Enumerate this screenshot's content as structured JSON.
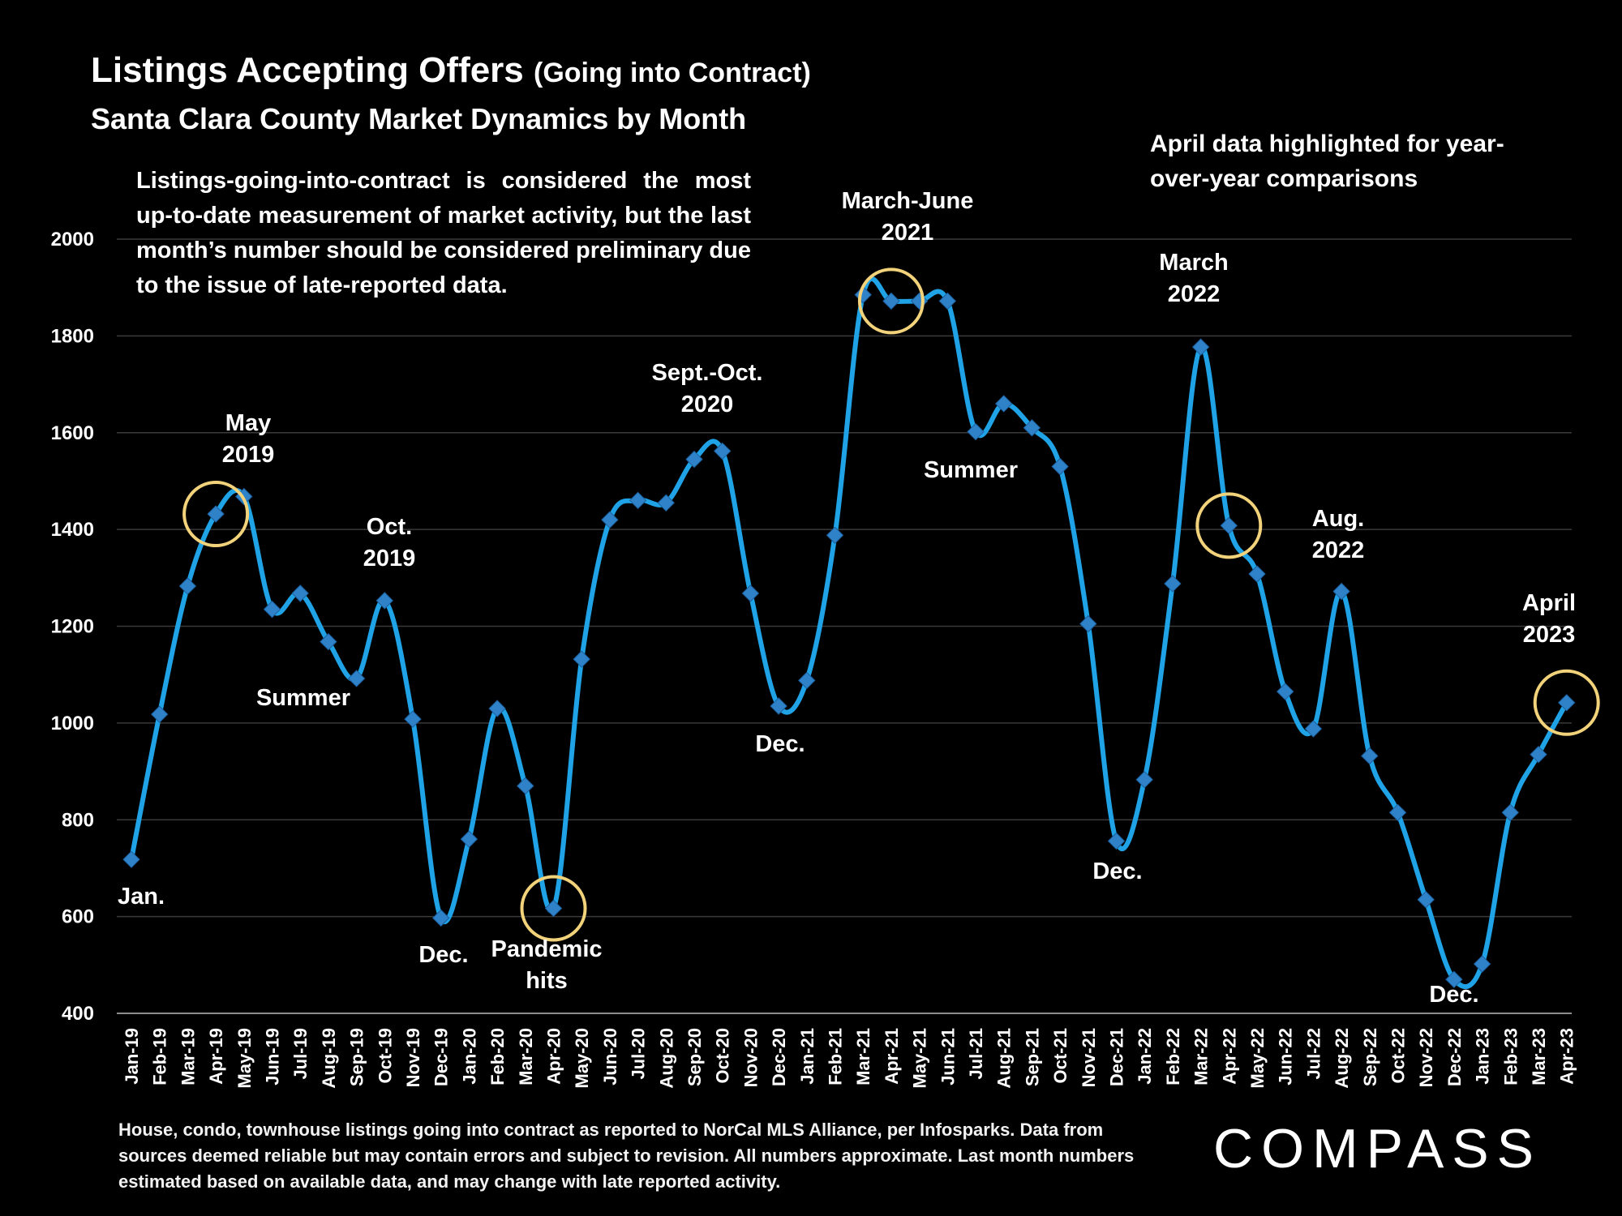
{
  "header": {
    "title": "Listings Accepting Offers",
    "title_suffix": "(Going into Contract)",
    "subtitle": "Santa Clara County Market Dynamics by Month"
  },
  "note": "Listings-going-into-contract is considered the most up-to-date measurement of market activity, but the last month’s number should be considered preliminary due to the issue of late-reported data.",
  "april_note": "April data highlighted for year-over-year comparisons",
  "footnote": "House, condo, townhouse listings going into contract as reported to NorCal MLS Alliance, per Infosparks. Data from sources deemed reliable but may contain errors and subject to revision. All numbers approximate. Last month numbers estimated based on available data, and may change with late reported activity.",
  "logo": "COMPASS",
  "chart_data": {
    "type": "line",
    "x": [
      "Jan-19",
      "Feb-19",
      "Mar-19",
      "Apr-19",
      "May-19",
      "Jun-19",
      "Jul-19",
      "Aug-19",
      "Sep-19",
      "Oct-19",
      "Nov-19",
      "Dec-19",
      "Jan-20",
      "Feb-20",
      "Mar-20",
      "Apr-20",
      "May-20",
      "Jun-20",
      "Jul-20",
      "Aug-20",
      "Sep-20",
      "Oct-20",
      "Nov-20",
      "Dec-20",
      "Jan-21",
      "Feb-21",
      "Mar-21",
      "Apr-21",
      "May-21",
      "Jun-21",
      "Jul-21",
      "Aug-21",
      "Sep-21",
      "Oct-21",
      "Nov-21",
      "Dec-21",
      "Jan-22",
      "Feb-22",
      "Mar-22",
      "Apr-22",
      "May-22",
      "Jun-22",
      "Jul-22",
      "Aug-22",
      "Sep-22",
      "Oct-22",
      "Nov-22",
      "Dec-22",
      "Jan-23",
      "Feb-23",
      "Mar-23",
      "Apr-23"
    ],
    "series": [
      {
        "values": [
          718,
          1018,
          1283,
          1432,
          1468,
          1235,
          1268,
          1168,
          1092,
          1253,
          1008,
          597,
          760,
          1030,
          870,
          617,
          1132,
          1420,
          1460,
          1455,
          1545,
          1562,
          1268,
          1035,
          1088,
          1388,
          1885,
          1872,
          1872,
          1872,
          1602,
          1660,
          1610,
          1530,
          1205,
          756,
          883,
          1288,
          1777,
          1408,
          1308,
          1065,
          988,
          1272,
          932,
          815,
          635,
          470,
          502,
          815,
          935,
          1042
        ],
        "color": "#1fa3e6",
        "marker_color": "#2f82c8"
      }
    ],
    "ylim": [
      400,
      2000
    ],
    "yticks": [
      400,
      600,
      800,
      1000,
      1200,
      1400,
      1600,
      1800,
      2000
    ],
    "grid": true,
    "highlight_color": "#f2d27a",
    "highlights": [
      "Apr-19",
      "Apr-20",
      "Apr-21",
      "Apr-22",
      "Apr-23"
    ],
    "annotations": [
      {
        "lines": [
          "Jan."
        ]
      },
      {
        "lines": [
          "May",
          "2019"
        ]
      },
      {
        "lines": [
          "Summer"
        ]
      },
      {
        "lines": [
          "Oct.",
          "2019"
        ]
      },
      {
        "lines": [
          "Dec."
        ]
      },
      {
        "lines": [
          "Pandemic",
          "hits"
        ]
      },
      {
        "lines": [
          "Sept.-Oct.",
          "2020"
        ]
      },
      {
        "lines": [
          "Dec."
        ]
      },
      {
        "lines": [
          "March-June",
          "2021"
        ]
      },
      {
        "lines": [
          "Summer"
        ]
      },
      {
        "lines": [
          "March",
          "2022"
        ]
      },
      {
        "lines": [
          "Dec."
        ]
      },
      {
        "lines": [
          "Aug.",
          "2022"
        ]
      },
      {
        "lines": [
          "April",
          "2023"
        ]
      },
      {
        "lines": [
          "Dec."
        ]
      }
    ]
  }
}
